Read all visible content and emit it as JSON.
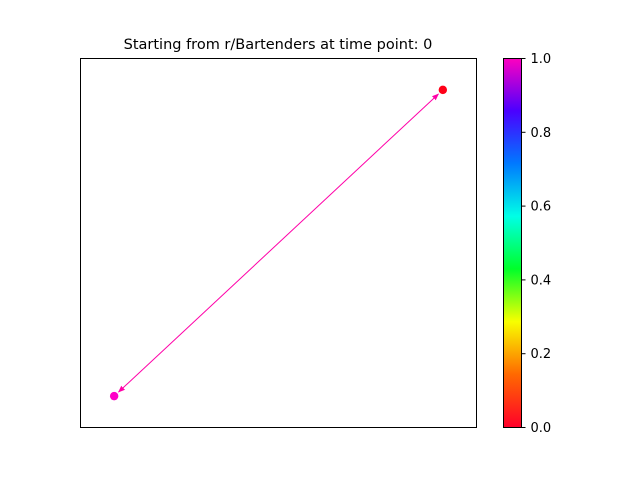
{
  "chart_data": {
    "type": "scatter",
    "title": "Starting from r/Bartenders at time point: 0",
    "x_ticks_shown": false,
    "y_ticks_shown": false,
    "points": [
      {
        "x": 0.915,
        "y": 0.915,
        "color_value": 0.0,
        "color": "#ff0018"
      },
      {
        "x": 0.085,
        "y": 0.085,
        "color_value": 0.93,
        "color": "#ff00c8"
      }
    ],
    "edges": [
      {
        "from": 0,
        "to": 1,
        "color": "#ff00a8",
        "bidirectional": true
      }
    ],
    "colorbar": {
      "colormap": "gist_rainbow",
      "min": 0.0,
      "max": 1.0,
      "tick_labels": [
        "0.0",
        "0.2",
        "0.4",
        "0.6",
        "0.8",
        "1.0"
      ],
      "stops": [
        "#ff0029",
        "#ff6900",
        "#f8ff00",
        "#00ff2a",
        "#00ffe6",
        "#0079ff",
        "#4b00ff",
        "#ff00bf"
      ]
    }
  }
}
